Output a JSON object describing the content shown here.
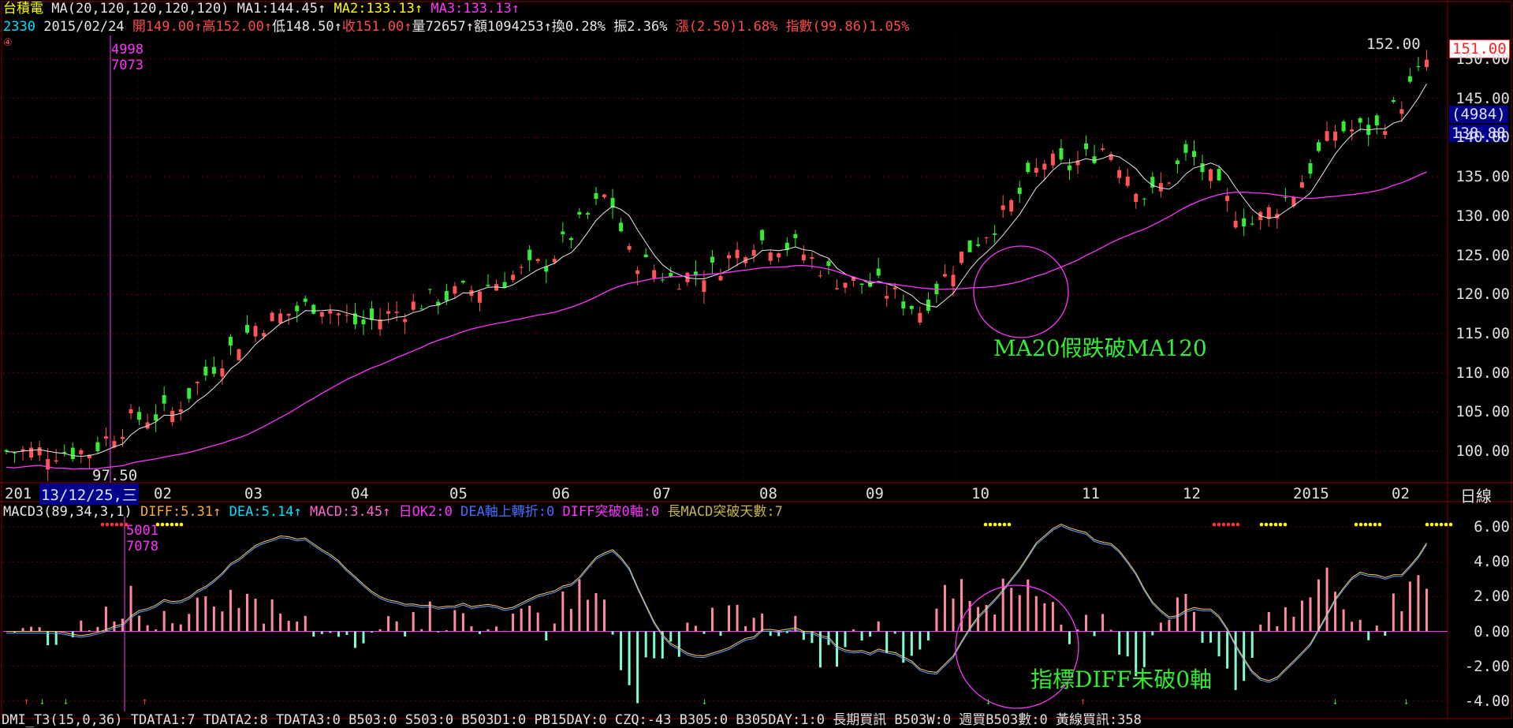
{
  "header": {
    "stock_name": "台積電",
    "ma_def": "MA(20,120,120,120,120)",
    "ma1": "MA1:144.45",
    "ma2": "MA2:133.13",
    "ma3": "MA3:133.13",
    "code": "2330",
    "date": "2015/02/24",
    "open": "開149.00",
    "high": "高152.00",
    "low": "低148.50",
    "close": "收151.00",
    "volume": "量72657",
    "amount": "額1094253",
    "turnover": "換0.28%",
    "amplitude": "振2.36%",
    "change": "漲(2.50)1.68%",
    "index": "指數(99.86)1.05%",
    "marker": "④",
    "arrow": "↑"
  },
  "price_panel": {
    "y_ticks": [
      "150.00",
      "145.00",
      "140.00",
      "135.00",
      "130.00",
      "125.00",
      "120.00",
      "115.00",
      "110.00",
      "105.00",
      "100.00"
    ],
    "high_label": "152.00",
    "last_price_tag": "151.00",
    "volume_tag": "(4984)",
    "ma_tag": "138.88",
    "low_label": "97.50",
    "cursor_top": "4998",
    "cursor_bottom": "7073",
    "annotation": "MA20假跌破MA120",
    "period": "日線"
  },
  "x_axis": {
    "date_box": "13/12/25,三",
    "prefix": "201",
    "months": [
      "02",
      "03",
      "04",
      "05",
      "06",
      "07",
      "08",
      "09",
      "10",
      "11",
      "12",
      "2015",
      "02"
    ]
  },
  "macd_panel": {
    "title": "MACD3(89,34,3,1)",
    "diff": "DIFF:5.31",
    "dea": "DEA:5.14",
    "macd": "MACD:3.45",
    "ok2": "日OK2:0",
    "dea_turn": "DEA軸上轉折:0",
    "diff_break": "DIFF突破0軸:0",
    "long_days": "長MACD突破天數:7",
    "y_ticks": [
      "6.00",
      "4.00",
      "2.00",
      "0.00",
      "-2.00",
      "-4.00"
    ],
    "cursor_top": "5001",
    "cursor_bottom": "7078",
    "annotation": "指標DIFF未破0軸"
  },
  "bottom_bar": {
    "text": "DMI_T3(15,0,36)  TDATA1:7  TDATA2:8  TDATA3:0  B503:0  S503:0  B503D1:0  PB15DAY:0  CZQ:-43  B305:0  B305DAY:1:0  長期買訊  B503W:0  週買B503數:0  黃線買訊:358"
  },
  "chart_data": {
    "type": "candlestick",
    "price_range": [
      96,
      153
    ],
    "macd_range": [
      -4.6,
      6.6
    ],
    "colors": {
      "up": "#ff5555",
      "down": "#33ee33",
      "ma20": "#e8e8e8",
      "ma120": "#ff33ff",
      "hist_pos": "#ff8aa0",
      "hist_neg": "#7fffd4",
      "grid": "#8b0000"
    }
  }
}
